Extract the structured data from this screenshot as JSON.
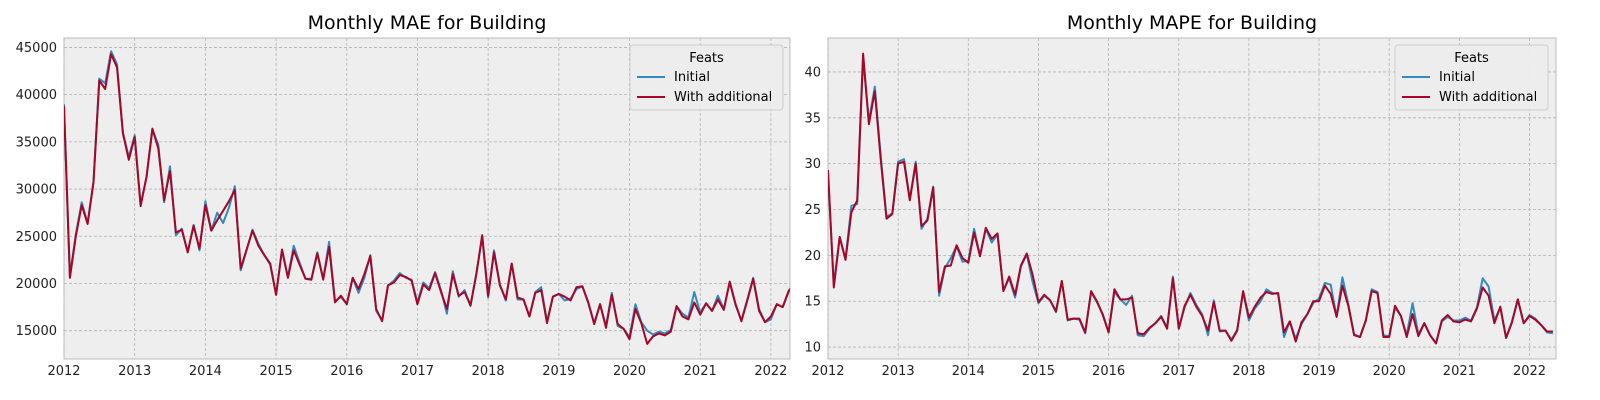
{
  "style": {
    "initial_color": "#348abd",
    "additional_color": "#a60628",
    "plot_bg": "#eeeeee",
    "grid": "#b2b2b2"
  },
  "chart_data": [
    {
      "type": "line",
      "title": "Monthly MAE for Building",
      "xlabel": "",
      "ylabel": "",
      "x_start": "2012-01",
      "x_ticks": [
        "2012",
        "2013",
        "2014",
        "2015",
        "2016",
        "2017",
        "2018",
        "2019",
        "2020",
        "2021",
        "2022"
      ],
      "y_ticks": [
        15000,
        20000,
        25000,
        30000,
        35000,
        40000,
        45000
      ],
      "ylim": [
        12000,
        46000
      ],
      "legend": {
        "title": "Feats",
        "position": "top-right"
      },
      "series": [
        {
          "name": "Initial",
          "values": [
            39000,
            20800,
            25200,
            28600,
            26400,
            30800,
            41700,
            41200,
            44600,
            43200,
            36000,
            33400,
            35700,
            28400,
            31200,
            36300,
            34700,
            28600,
            32400,
            25100,
            25800,
            23300,
            26200,
            23500,
            28700,
            25600,
            27500,
            26400,
            28000,
            30300,
            21400,
            23500,
            25700,
            24200,
            23000,
            22000,
            18800,
            23500,
            20700,
            24000,
            22200,
            20500,
            20500,
            23300,
            20500,
            24400,
            18100,
            18600,
            17800,
            20600,
            19000,
            20600,
            23000,
            17100,
            16100,
            19800,
            20300,
            21100,
            20600,
            20400,
            18000,
            20100,
            19500,
            21200,
            19300,
            16800,
            21300,
            18600,
            19300,
            17600,
            21100,
            25000,
            18500,
            23500,
            19900,
            18200,
            22100,
            18300,
            18300,
            16500,
            19100,
            19600,
            16000,
            18600,
            18900,
            18200,
            18400,
            19400,
            19700,
            17900,
            15800,
            17800,
            15500,
            19000,
            15500,
            15200,
            14300,
            17800,
            15900,
            15000,
            14600,
            14900,
            14700,
            15100,
            17600,
            16800,
            16400,
            19100,
            16900,
            17900,
            17100,
            18700,
            17300,
            20100,
            17700,
            16100,
            18300,
            20600,
            17300,
            15900,
            16200,
            17800,
            17500,
            19100,
            20200
          ]
        },
        {
          "name": "With additional",
          "values": [
            38800,
            20600,
            25000,
            28300,
            26300,
            30700,
            41500,
            40600,
            44300,
            42900,
            35900,
            33100,
            35500,
            28200,
            31300,
            36400,
            34300,
            28800,
            31900,
            25400,
            25700,
            23300,
            26100,
            23700,
            28300,
            25600,
            26700,
            27700,
            28700,
            29900,
            21600,
            23600,
            25600,
            24000,
            23000,
            22100,
            18800,
            23600,
            20600,
            23500,
            22000,
            20500,
            20400,
            23200,
            20400,
            23900,
            18000,
            18700,
            17800,
            20600,
            19400,
            21000,
            22900,
            17300,
            16000,
            19800,
            20100,
            20900,
            20700,
            20300,
            17800,
            19900,
            19300,
            21100,
            19100,
            17300,
            21000,
            18700,
            19100,
            17700,
            21000,
            25100,
            18700,
            23300,
            19800,
            18300,
            22100,
            18500,
            18300,
            16500,
            19000,
            19300,
            15800,
            18600,
            18900,
            18600,
            18200,
            19600,
            19700,
            18000,
            15700,
            17800,
            15300,
            18800,
            15700,
            15200,
            14100,
            17300,
            15800,
            13600,
            14400,
            14700,
            14500,
            14900,
            17600,
            16500,
            16200,
            18000,
            16700,
            17900,
            17100,
            18300,
            17200,
            20200,
            17800,
            16000,
            18200,
            20500,
            17100,
            15900,
            16500,
            17800,
            17500,
            19200,
            20000
          ]
        }
      ]
    },
    {
      "type": "line",
      "title": "Monthly MAPE for Building",
      "xlabel": "",
      "ylabel": "",
      "x_start": "2012-01",
      "x_ticks": [
        "2012",
        "2013",
        "2014",
        "2015",
        "2016",
        "2017",
        "2018",
        "2019",
        "2020",
        "2021",
        "2022"
      ],
      "y_ticks": [
        10,
        15,
        20,
        25,
        30,
        35,
        40
      ],
      "ylim": [
        8.7,
        43.7
      ],
      "legend": {
        "title": "Feats",
        "position": "top-right"
      },
      "series": [
        {
          "name": "Initial",
          "values": [
            29.0,
            16.8,
            22.0,
            19.6,
            25.4,
            25.6,
            41.5,
            34.6,
            38.4,
            31.0,
            24.2,
            24.6,
            30.2,
            30.5,
            26.1,
            30.2,
            22.9,
            24.0,
            27.5,
            15.6,
            18.6,
            19.7,
            21.0,
            19.3,
            19.4,
            22.9,
            20.0,
            22.9,
            21.4,
            22.3,
            16.2,
            17.5,
            15.4,
            18.8,
            20.1,
            17.1,
            14.8,
            15.6,
            15.1,
            13.8,
            17.2,
            12.9,
            13.1,
            13.0,
            11.5,
            16.0,
            14.9,
            13.6,
            11.6,
            16.0,
            15.2,
            14.6,
            15.6,
            11.3,
            11.2,
            12.0,
            12.6,
            13.4,
            12.1,
            17.7,
            12.1,
            14.3,
            15.9,
            14.6,
            13.6,
            11.3,
            15.1,
            11.7,
            11.8,
            10.8,
            11.9,
            16.0,
            12.9,
            14.2,
            15.0,
            16.3,
            15.9,
            15.8,
            11.1,
            12.8,
            10.9,
            12.5,
            13.6,
            14.8,
            15.3,
            17.0,
            16.8,
            13.3,
            17.6,
            14.7,
            11.4,
            11.1,
            12.9,
            16.3,
            16.0,
            11.3,
            11.2,
            14.3,
            13.4,
            11.3,
            14.8,
            11.4,
            12.6,
            11.3,
            10.4,
            12.8,
            13.3,
            12.9,
            12.9,
            13.2,
            12.9,
            14.3,
            17.5,
            16.6,
            12.9,
            14.3,
            11.0,
            12.8,
            15.2,
            12.6,
            13.5,
            13.1,
            12.4,
            11.6,
            11.5
          ]
        },
        {
          "name": "With additional",
          "values": [
            29.3,
            16.5,
            22.0,
            19.5,
            24.7,
            26.0,
            42.0,
            34.3,
            37.9,
            30.6,
            24.0,
            24.5,
            30.0,
            30.2,
            26.0,
            30.0,
            23.2,
            23.8,
            27.4,
            16.0,
            18.8,
            18.9,
            21.1,
            19.7,
            19.2,
            22.5,
            19.9,
            23.0,
            21.8,
            22.4,
            16.1,
            17.7,
            15.7,
            18.9,
            20.2,
            17.9,
            14.9,
            15.7,
            15.1,
            13.9,
            17.2,
            13.0,
            13.1,
            13.1,
            11.6,
            16.1,
            15.0,
            13.5,
            11.6,
            16.3,
            15.2,
            15.2,
            15.4,
            11.5,
            11.4,
            12.1,
            12.6,
            13.3,
            12.0,
            17.5,
            12.0,
            14.5,
            15.7,
            14.4,
            13.4,
            11.8,
            14.9,
            11.8,
            11.8,
            10.7,
            11.8,
            16.1,
            13.2,
            14.4,
            15.4,
            16.0,
            15.8,
            15.9,
            11.6,
            12.8,
            10.6,
            12.7,
            13.6,
            15.0,
            15.0,
            16.7,
            15.8,
            13.3,
            16.7,
            14.5,
            11.3,
            11.1,
            12.9,
            16.1,
            15.9,
            11.1,
            11.1,
            14.5,
            13.4,
            11.1,
            13.6,
            11.2,
            12.6,
            11.3,
            10.4,
            12.9,
            13.5,
            12.8,
            12.7,
            13.0,
            12.8,
            14.2,
            16.5,
            15.6,
            12.6,
            14.4,
            11.0,
            12.7,
            15.2,
            12.6,
            13.4,
            13.0,
            12.4,
            11.7,
            11.7
          ]
        }
      ]
    }
  ]
}
